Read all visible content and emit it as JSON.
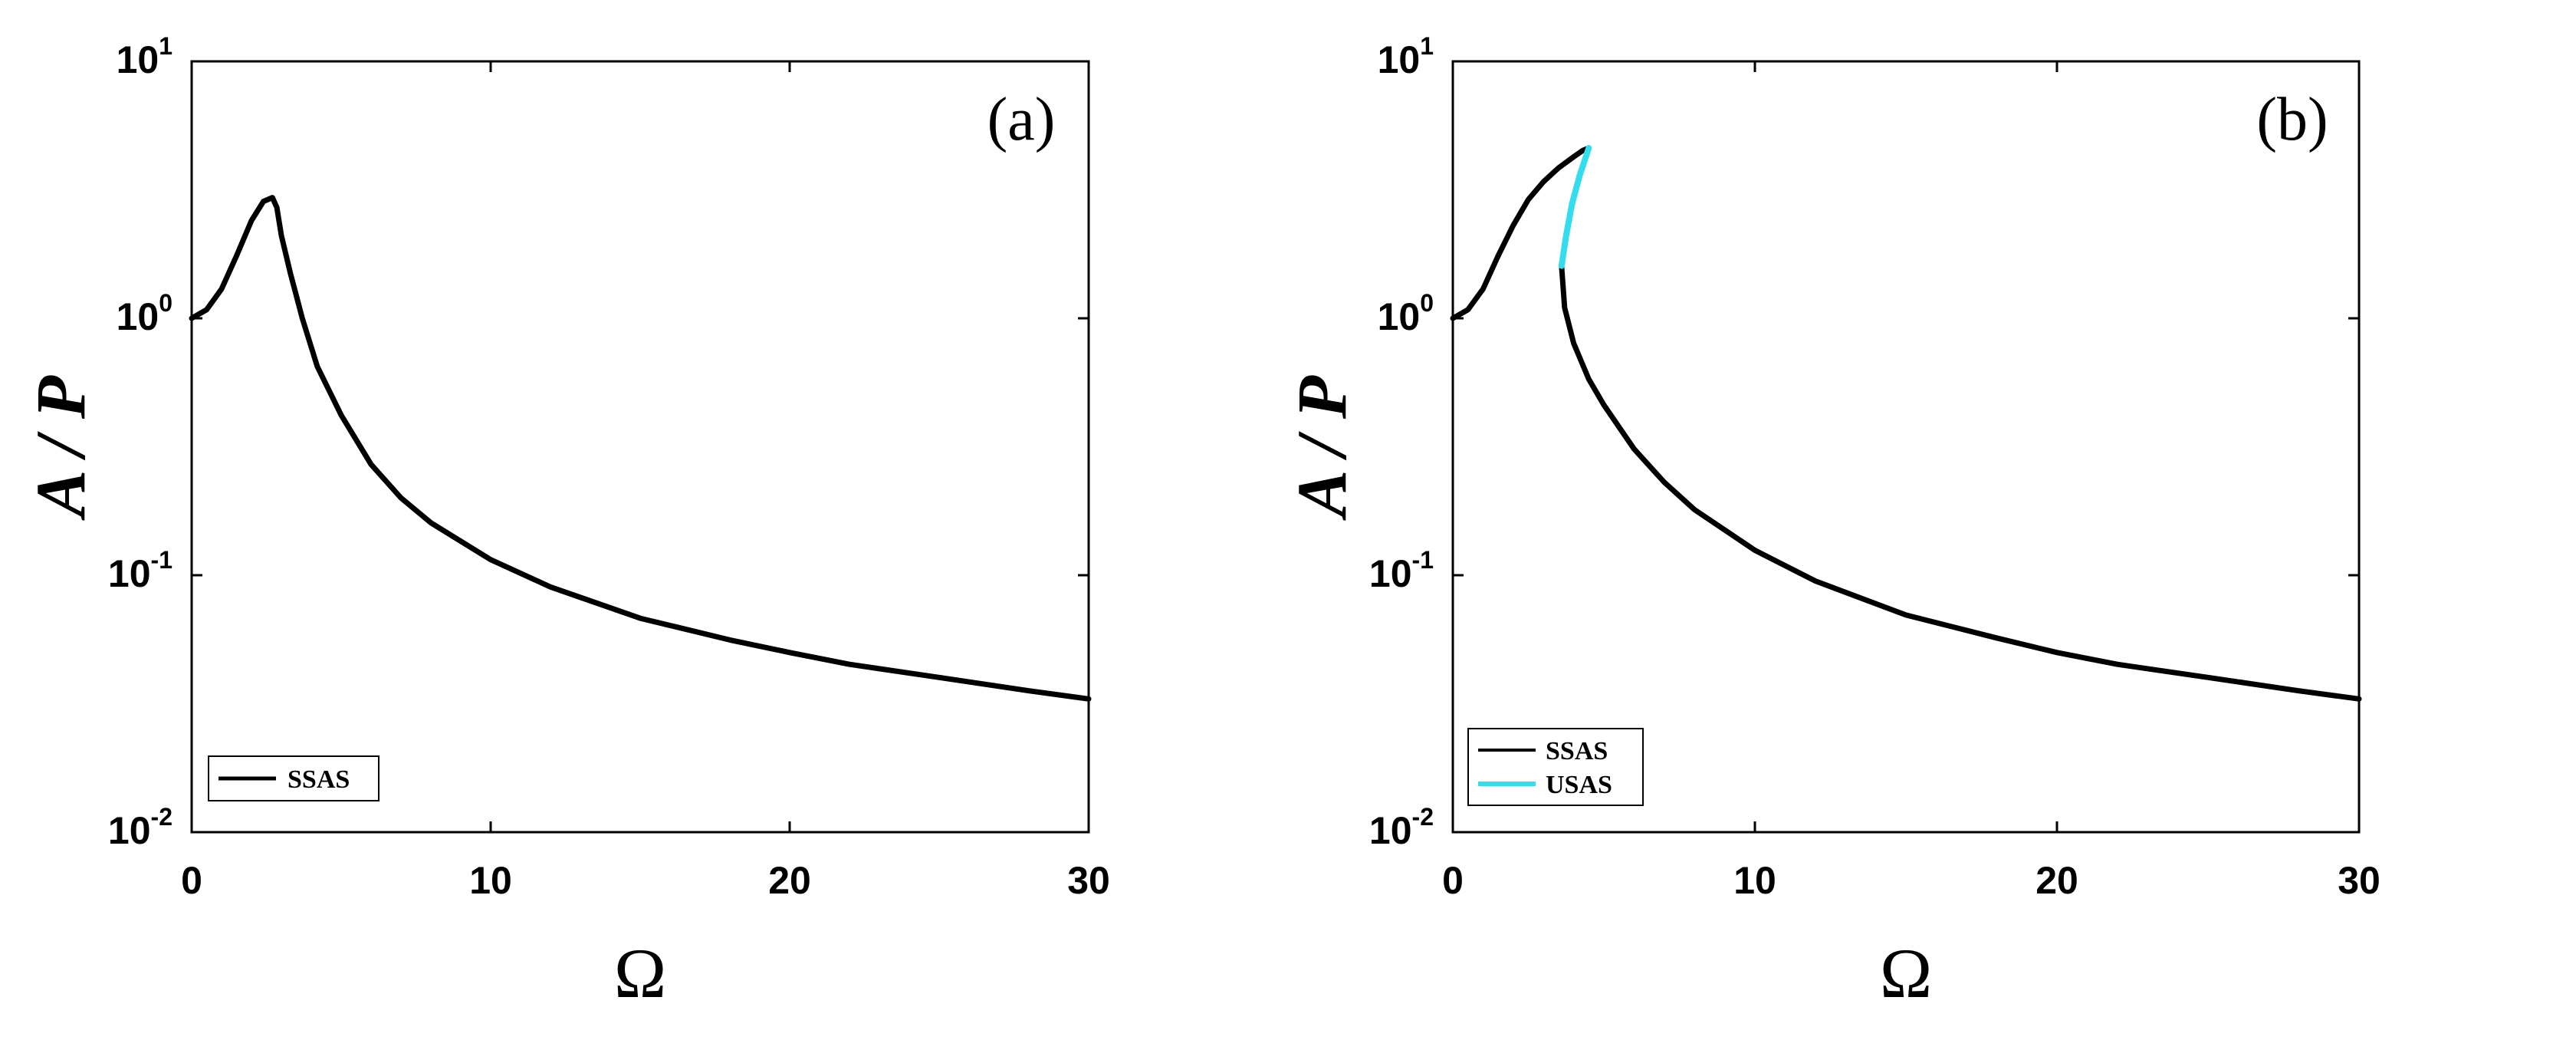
{
  "chart_data": [
    {
      "type": "line",
      "panel_label": "(a)",
      "xlabel": "Ω",
      "ylabel": "A / P",
      "xscale": "linear",
      "yscale": "log",
      "xlim": [
        0,
        30
      ],
      "ylim": [
        0.01,
        10
      ],
      "xticks": [
        0,
        10,
        20,
        30
      ],
      "xtick_labels": [
        "0",
        "10",
        "20",
        "30"
      ],
      "ytick_values": [
        0.01,
        0.1,
        1,
        10
      ],
      "ytick_labels": [
        {
          "base": "10",
          "exp": "-2"
        },
        {
          "base": "10",
          "exp": "-1"
        },
        {
          "base": "10",
          "exp": "0"
        },
        {
          "base": "10",
          "exp": "1"
        }
      ],
      "grid": false,
      "legend_position": "bottom-left",
      "series": [
        {
          "name": "SSAS",
          "color": "#000000",
          "x": [
            0,
            0.5,
            1.0,
            1.5,
            2.0,
            2.4,
            2.7,
            2.85,
            3.0,
            3.3,
            3.7,
            4.2,
            5,
            6,
            7,
            8,
            10,
            12,
            15,
            18,
            20,
            22,
            25,
            28,
            30
          ],
          "y": [
            1.0,
            1.08,
            1.3,
            1.75,
            2.4,
            2.85,
            2.95,
            2.7,
            2.1,
            1.5,
            1.0,
            0.65,
            0.42,
            0.27,
            0.2,
            0.16,
            0.115,
            0.09,
            0.068,
            0.056,
            0.05,
            0.045,
            0.04,
            0.0355,
            0.033
          ]
        }
      ]
    },
    {
      "type": "line",
      "panel_label": "(b)",
      "xlabel": "Ω",
      "ylabel": "A / P",
      "xscale": "linear",
      "yscale": "log",
      "xlim": [
        0,
        30
      ],
      "ylim": [
        0.01,
        10
      ],
      "xticks": [
        0,
        10,
        20,
        30
      ],
      "xtick_labels": [
        "0",
        "10",
        "20",
        "30"
      ],
      "ytick_values": [
        0.01,
        0.1,
        1,
        10
      ],
      "ytick_labels": [
        {
          "base": "10",
          "exp": "-2"
        },
        {
          "base": "10",
          "exp": "-1"
        },
        {
          "base": "10",
          "exp": "0"
        },
        {
          "base": "10",
          "exp": "1"
        }
      ],
      "grid": false,
      "legend_position": "bottom-left",
      "series": [
        {
          "name": "SSAS",
          "color": "#000000",
          "segments": [
            {
              "x": [
                0,
                0.5,
                1.0,
                1.5,
                2.0,
                2.5,
                3.0,
                3.5,
                4.0,
                4.3,
                4.5
              ],
              "y": [
                1.0,
                1.08,
                1.3,
                1.75,
                2.3,
                2.9,
                3.4,
                3.85,
                4.25,
                4.5,
                4.6
              ]
            },
            {
              "x": [
                3.6,
                3.7,
                4.0,
                4.5,
                5,
                6,
                7,
                8,
                10,
                12,
                15,
                18,
                20,
                22,
                25,
                28,
                30
              ],
              "y": [
                1.6,
                1.1,
                0.8,
                0.58,
                0.46,
                0.31,
                0.23,
                0.18,
                0.125,
                0.095,
                0.07,
                0.057,
                0.05,
                0.045,
                0.04,
                0.0355,
                0.033
              ]
            }
          ]
        },
        {
          "name": "USAS",
          "color": "#33DDEE",
          "segments": [
            {
              "x": [
                4.5,
                4.2,
                3.95,
                3.75,
                3.6
              ],
              "y": [
                4.6,
                3.6,
                2.8,
                2.1,
                1.6
              ]
            }
          ]
        }
      ]
    }
  ]
}
